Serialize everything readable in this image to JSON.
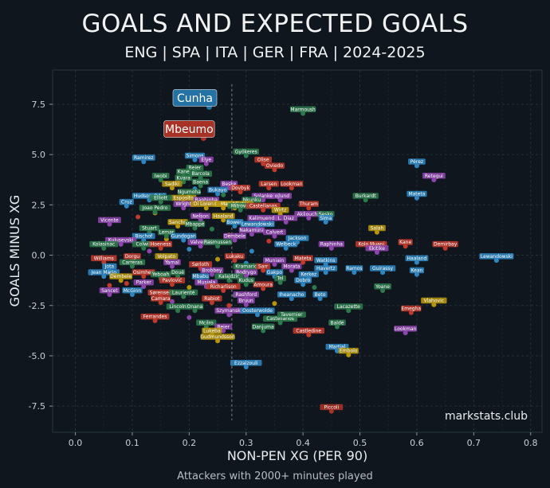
{
  "header": {
    "title": "GOALS AND EXPECTED GOALS",
    "subtitle": "ENG | SPA | ITA | GER | FRA | 2024-2025"
  },
  "caption": "Attackers with 2000+ minutes played",
  "watermark": "markstats.club",
  "chart_data": {
    "type": "scatter",
    "xlabel": "NON-PEN XG (PER 90)",
    "ylabel": "GOALS MINUS XG",
    "xlim": [
      -0.04,
      0.82
    ],
    "ylim": [
      -8.8,
      9.2
    ],
    "xticks": [
      "0.0",
      "0.1",
      "0.2",
      "0.3",
      "0.4",
      "0.5",
      "0.6",
      "0.7",
      "0.8"
    ],
    "yticks": [
      "-7.5",
      "-5.0",
      "-2.5",
      "0.0",
      "2.5",
      "5.0",
      "7.5"
    ],
    "grid": true,
    "median_x": 0.275,
    "league_colors": {
      "ENG": "#c0392b",
      "SPA": "#2e86c1",
      "ITA": "#2c7a4b",
      "GER": "#8e44ad",
      "FRA": "#b7950b"
    },
    "highlighted": [
      {
        "name": "Cunha",
        "x": 0.21,
        "y": 7.8,
        "color": "#2471a3"
      },
      {
        "name": "Mbeumo",
        "x": 0.2,
        "y": 6.25,
        "color": "#a93226"
      }
    ],
    "labeled_players": [
      {
        "name": "Marmoush",
        "x": 0.4,
        "y": 7.2,
        "color": "#2c7a4b"
      },
      {
        "name": "Gyökeres",
        "x": 0.3,
        "y": 5.1,
        "color": "#2c7a4b"
      },
      {
        "name": "Simons",
        "x": 0.21,
        "y": 4.9,
        "color": "#2e86c1"
      },
      {
        "name": "Elye",
        "x": 0.23,
        "y": 4.7,
        "color": "#8e44ad"
      },
      {
        "name": "Ramirez",
        "x": 0.12,
        "y": 4.8,
        "color": "#2e86c1"
      },
      {
        "name": "Olise",
        "x": 0.33,
        "y": 4.7,
        "color": "#c0392b"
      },
      {
        "name": "Oviedo",
        "x": 0.35,
        "y": 4.4,
        "color": "#c0392b"
      },
      {
        "name": "Pérez",
        "x": 0.6,
        "y": 4.6,
        "color": "#2e86c1"
      },
      {
        "name": "Beier",
        "x": 0.21,
        "y": 4.3,
        "color": "#2c7a4b"
      },
      {
        "name": "Kane",
        "x": 0.19,
        "y": 4.1,
        "color": "#2c7a4b"
      },
      {
        "name": "Barcola",
        "x": 0.22,
        "y": 4.0,
        "color": "#2c7a4b"
      },
      {
        "name": "Retegui",
        "x": 0.63,
        "y": 3.9,
        "color": "#8e44ad"
      },
      {
        "name": "Iwobi",
        "x": 0.15,
        "y": 3.9,
        "color": "#2c7a4b"
      },
      {
        "name": "Kvara",
        "x": 0.19,
        "y": 3.8,
        "color": "#2c7a4b"
      },
      {
        "name": "Larsen",
        "x": 0.34,
        "y": 3.5,
        "color": "#c0392b"
      },
      {
        "name": "Lookman",
        "x": 0.38,
        "y": 3.5,
        "color": "#c0392b"
      },
      {
        "name": "Baena",
        "x": 0.22,
        "y": 3.6,
        "color": "#2c7a4b"
      },
      {
        "name": "Beske",
        "x": 0.27,
        "y": 3.5,
        "color": "#8e44ad"
      },
      {
        "name": "Dovbyk",
        "x": 0.29,
        "y": 3.3,
        "color": "#c0392b"
      },
      {
        "name": "Sadiki",
        "x": 0.17,
        "y": 3.5,
        "color": "#b7950b"
      },
      {
        "name": "Bukayo",
        "x": 0.25,
        "y": 3.2,
        "color": "#2e86c1"
      },
      {
        "name": "Ngumoha",
        "x": 0.2,
        "y": 3.1,
        "color": "#2c7a4b"
      },
      {
        "name": "Mateta",
        "x": 0.6,
        "y": 3.0,
        "color": "#2e86c1"
      },
      {
        "name": "Burkardt",
        "x": 0.51,
        "y": 2.9,
        "color": "#2c7a4b"
      },
      {
        "name": "Hudson-Odoi",
        "x": 0.13,
        "y": 2.9,
        "color": "#2e86c1"
      },
      {
        "name": "Esposito",
        "x": 0.19,
        "y": 2.8,
        "color": "#b7950b"
      },
      {
        "name": "Raphinha",
        "x": 0.23,
        "y": 2.7,
        "color": "#8e44ad"
      },
      {
        "name": "Elliott",
        "x": 0.15,
        "y": 2.8,
        "color": "#2c7a4b"
      },
      {
        "name": "Hojlund",
        "x": 0.36,
        "y": 2.9,
        "color": "#8e44ad"
      },
      {
        "name": "Solanke",
        "x": 0.33,
        "y": 2.9,
        "color": "#8e44ad"
      },
      {
        "name": "Nkunku",
        "x": 0.31,
        "y": 2.7,
        "color": "#2c7a4b"
      },
      {
        "name": "Cruz",
        "x": 0.09,
        "y": 2.6,
        "color": "#2e86c1"
      },
      {
        "name": "Wright",
        "x": 0.19,
        "y": 2.5,
        "color": "#8e44ad"
      },
      {
        "name": "Di Lorenzo",
        "x": 0.23,
        "y": 2.5,
        "color": "#b7950b"
      },
      {
        "name": "Gordon",
        "x": 0.26,
        "y": 2.5,
        "color": "#b7950b"
      },
      {
        "name": "Mac Allister",
        "x": 0.28,
        "y": 2.5,
        "color": "#b7950b"
      },
      {
        "name": "Mitrovic",
        "x": 0.29,
        "y": 2.4,
        "color": "#2c7a4b"
      },
      {
        "name": "Castellanos",
        "x": 0.33,
        "y": 2.4,
        "color": "#c0392b"
      },
      {
        "name": "Thuram",
        "x": 0.41,
        "y": 2.5,
        "color": "#c0392b"
      },
      {
        "name": "Wirtz",
        "x": 0.36,
        "y": 2.2,
        "color": "#b7950b"
      },
      {
        "name": "Joao Pedro",
        "x": 0.14,
        "y": 2.3,
        "color": "#2c7a4b"
      },
      {
        "name": "Vicente",
        "x": 0.06,
        "y": 1.7,
        "color": "#8e44ad"
      },
      {
        "name": "Akliouche",
        "x": 0.41,
        "y": 2.0,
        "color": "#8e44ad"
      },
      {
        "name": "Sesko",
        "x": 0.44,
        "y": 2.0,
        "color": "#2c7a4b"
      },
      {
        "name": "Nelson",
        "x": 0.22,
        "y": 1.9,
        "color": "#8e44ad"
      },
      {
        "name": "Haaland",
        "x": 0.26,
        "y": 1.9,
        "color": "#b7950b"
      },
      {
        "name": "Kalimuendo",
        "x": 0.33,
        "y": 1.8,
        "color": "#8e44ad"
      },
      {
        "name": "L. Diaz",
        "x": 0.37,
        "y": 1.8,
        "color": "#8e44ad"
      },
      {
        "name": "Sima",
        "x": 0.44,
        "y": 1.8,
        "color": "#2e86c1"
      },
      {
        "name": "Sancho",
        "x": 0.18,
        "y": 1.6,
        "color": "#b7950b"
      },
      {
        "name": "Mbappé",
        "x": 0.21,
        "y": 1.5,
        "color": "#2c7a4b"
      },
      {
        "name": "Bowen",
        "x": 0.28,
        "y": 1.6,
        "color": "#2e86c1"
      },
      {
        "name": "Lewandowski",
        "x": 0.32,
        "y": 1.5,
        "color": "#2e86c1"
      },
      {
        "name": "Salah",
        "x": 0.53,
        "y": 1.3,
        "color": "#b7950b"
      },
      {
        "name": "Stuart",
        "x": 0.13,
        "y": 1.3,
        "color": "#2c7a4b"
      },
      {
        "name": "Lemar",
        "x": 0.16,
        "y": 1.1,
        "color": "#2c7a4b"
      },
      {
        "name": "Nakamura",
        "x": 0.31,
        "y": 1.2,
        "color": "#8e44ad"
      },
      {
        "name": "Calvert",
        "x": 0.35,
        "y": 1.1,
        "color": "#8e44ad"
      },
      {
        "name": "Bischof",
        "x": 0.12,
        "y": 0.9,
        "color": "#2e86c1"
      },
      {
        "name": "Gundogan",
        "x": 0.19,
        "y": 0.9,
        "color": "#2e86c1"
      },
      {
        "name": "Dembele",
        "x": 0.28,
        "y": 0.9,
        "color": "#8e44ad"
      },
      {
        "name": "Jackson",
        "x": 0.39,
        "y": 0.8,
        "color": "#2e86c1"
      },
      {
        "name": "Kulusevski",
        "x": 0.08,
        "y": 0.7,
        "color": "#8e44ad"
      },
      {
        "name": "Colwill",
        "x": 0.12,
        "y": 0.5,
        "color": "#2c7a4b"
      },
      {
        "name": "Hoeness",
        "x": 0.15,
        "y": 0.5,
        "color": "#c0392b"
      },
      {
        "name": "Valverde",
        "x": 0.22,
        "y": 0.6,
        "color": "#8e44ad"
      },
      {
        "name": "Rasmussen",
        "x": 0.25,
        "y": 0.6,
        "color": "#2c7a4b"
      },
      {
        "name": "Welbeck",
        "x": 0.37,
        "y": 0.5,
        "color": "#2e86c1"
      },
      {
        "name": "Raphinha",
        "x": 0.45,
        "y": 0.5,
        "color": "#8e44ad"
      },
      {
        "name": "Kolo Muani",
        "x": 0.52,
        "y": 0.5,
        "color": "#c0392b"
      },
      {
        "name": "Kane",
        "x": 0.58,
        "y": 0.6,
        "color": "#c0392b"
      },
      {
        "name": "Demirbay",
        "x": 0.65,
        "y": 0.5,
        "color": "#c0392b"
      },
      {
        "name": "Ekitike",
        "x": 0.53,
        "y": 0.3,
        "color": "#8e44ad"
      },
      {
        "name": "Kolasinac",
        "x": 0.05,
        "y": 0.5,
        "color": "#2c7a4b"
      },
      {
        "name": "Lewandowski",
        "x": 0.74,
        "y": -0.1,
        "color": "#2e86c1"
      },
      {
        "name": "Williams",
        "x": 0.05,
        "y": -0.2,
        "color": "#c0392b"
      },
      {
        "name": "Dorgu",
        "x": 0.1,
        "y": -0.1,
        "color": "#c0392b"
      },
      {
        "name": "Volpato",
        "x": 0.16,
        "y": -0.1,
        "color": "#b7950b"
      },
      {
        "name": "Lukaku",
        "x": 0.28,
        "y": -0.1,
        "color": "#c0392b"
      },
      {
        "name": "Muniain",
        "x": 0.35,
        "y": -0.3,
        "color": "#8e44ad"
      },
      {
        "name": "Mateta",
        "x": 0.4,
        "y": -0.2,
        "color": "#c0392b"
      },
      {
        "name": "Watkins",
        "x": 0.44,
        "y": -0.3,
        "color": "#2e86c1"
      },
      {
        "name": "Haaland",
        "x": 0.6,
        "y": -0.2,
        "color": "#2e86c1"
      },
      {
        "name": "Jota",
        "x": 0.06,
        "y": -0.6,
        "color": "#2e86c1"
      },
      {
        "name": "Carreras",
        "x": 0.1,
        "y": -0.4,
        "color": "#2c7a4b"
      },
      {
        "name": "Yamal",
        "x": 0.17,
        "y": -0.4,
        "color": "#8e44ad"
      },
      {
        "name": "Sørloth",
        "x": 0.22,
        "y": -0.5,
        "color": "#c0392b"
      },
      {
        "name": "Kramaric",
        "x": 0.3,
        "y": -0.6,
        "color": "#2c7a4b"
      },
      {
        "name": "Sarr",
        "x": 0.33,
        "y": -0.6,
        "color": "#c0392b"
      },
      {
        "name": "Morata",
        "x": 0.38,
        "y": -0.6,
        "color": "#8e44ad"
      },
      {
        "name": "Havertz",
        "x": 0.44,
        "y": -0.7,
        "color": "#2e86c1"
      },
      {
        "name": "Ramos",
        "x": 0.49,
        "y": -0.7,
        "color": "#2e86c1"
      },
      {
        "name": "Guirassy",
        "x": 0.54,
        "y": -0.7,
        "color": "#2e86c1"
      },
      {
        "name": "Kean",
        "x": 0.6,
        "y": -0.8,
        "color": "#2e86c1"
      },
      {
        "name": "Jean Mario",
        "x": 0.05,
        "y": -0.9,
        "color": "#2e86c1"
      },
      {
        "name": "Osimhen",
        "x": 0.12,
        "y": -0.9,
        "color": "#c0392b"
      },
      {
        "name": "Doué",
        "x": 0.18,
        "y": -0.9,
        "color": "#2c7a4b"
      },
      {
        "name": "Brobbey",
        "x": 0.24,
        "y": -0.8,
        "color": "#8e44ad"
      },
      {
        "name": "Rodrygo",
        "x": 0.3,
        "y": -0.9,
        "color": "#8e44ad"
      },
      {
        "name": "Gakpo",
        "x": 0.35,
        "y": -0.9,
        "color": "#2e86c1"
      },
      {
        "name": "Kerkez",
        "x": 0.41,
        "y": -1.0,
        "color": "#2e86c1"
      },
      {
        "name": "Dembele",
        "x": 0.08,
        "y": -1.1,
        "color": "#b7950b"
      },
      {
        "name": "Yeboah",
        "x": 0.15,
        "y": -1.0,
        "color": "#2c7a4b"
      },
      {
        "name": "Mbabu",
        "x": 0.22,
        "y": -1.1,
        "color": "#2e86c1"
      },
      {
        "name": "Kalajdzic",
        "x": 0.27,
        "y": -1.1,
        "color": "#2c7a4b"
      },
      {
        "name": "Tel",
        "x": 0.36,
        "y": -1.2,
        "color": "#2c7a4b"
      },
      {
        "name": "Dobro",
        "x": 0.4,
        "y": -1.3,
        "color": "#2e86c1"
      },
      {
        "name": "Amoura",
        "x": 0.33,
        "y": -1.5,
        "color": "#c0392b"
      },
      {
        "name": "Kudus",
        "x": 0.3,
        "y": -1.3,
        "color": "#2c7a4b"
      },
      {
        "name": "Pavlović",
        "x": 0.17,
        "y": -1.3,
        "color": "#c0392b"
      },
      {
        "name": "Musiala",
        "x": 0.23,
        "y": -1.4,
        "color": "#8e44ad"
      },
      {
        "name": "Yoane",
        "x": 0.54,
        "y": -1.6,
        "color": "#2c7a4b"
      },
      {
        "name": "Parker",
        "x": 0.12,
        "y": -1.4,
        "color": "#8e44ad"
      },
      {
        "name": "Richarlison",
        "x": 0.26,
        "y": -1.6,
        "color": "#c0392b"
      },
      {
        "name": "McGinn",
        "x": 0.1,
        "y": -1.8,
        "color": "#2e86c1"
      },
      {
        "name": "Sancet",
        "x": 0.06,
        "y": -1.8,
        "color": "#8e44ad"
      },
      {
        "name": "Sørensen",
        "x": 0.15,
        "y": -1.9,
        "color": "#c0392b"
      },
      {
        "name": "Laurienté",
        "x": 0.19,
        "y": -1.9,
        "color": "#2c7a4b"
      },
      {
        "name": "Rashford",
        "x": 0.3,
        "y": -2.0,
        "color": "#8e44ad"
      },
      {
        "name": "Iheanacho",
        "x": 0.38,
        "y": -2.0,
        "color": "#2e86c1"
      },
      {
        "name": "Beto",
        "x": 0.43,
        "y": -2.0,
        "color": "#2e86c1"
      },
      {
        "name": "Camara",
        "x": 0.15,
        "y": -2.2,
        "color": "#c0392b"
      },
      {
        "name": "Rabiot",
        "x": 0.24,
        "y": -2.2,
        "color": "#c0392b"
      },
      {
        "name": "Bruun",
        "x": 0.3,
        "y": -2.3,
        "color": "#8e44ad"
      },
      {
        "name": "Lacazette",
        "x": 0.48,
        "y": -2.6,
        "color": "#2c7a4b"
      },
      {
        "name": "Vlahovic",
        "x": 0.63,
        "y": -2.3,
        "color": "#b7950b"
      },
      {
        "name": "Emegha",
        "x": 0.59,
        "y": -2.7,
        "color": "#c0392b"
      },
      {
        "name": "Lincoln",
        "x": 0.18,
        "y": -2.6,
        "color": "#2c7a4b"
      },
      {
        "name": "Onana",
        "x": 0.21,
        "y": -2.6,
        "color": "#2c7a4b"
      },
      {
        "name": "Szymanski",
        "x": 0.27,
        "y": -2.8,
        "color": "#8e44ad"
      },
      {
        "name": "Oosterwolde",
        "x": 0.32,
        "y": -2.8,
        "color": "#2e86c1"
      },
      {
        "name": "Ferrandes",
        "x": 0.14,
        "y": -3.1,
        "color": "#c0392b"
      },
      {
        "name": "Castellanos",
        "x": 0.36,
        "y": -3.2,
        "color": "#2c7a4b"
      },
      {
        "name": "Tavernier",
        "x": 0.38,
        "y": -3.0,
        "color": "#2c7a4b"
      },
      {
        "name": "Mcilro",
        "x": 0.23,
        "y": -3.4,
        "color": "#2c7a4b"
      },
      {
        "name": "Danjuma",
        "x": 0.33,
        "y": -3.6,
        "color": "#2c7a4b"
      },
      {
        "name": "Baldé",
        "x": 0.46,
        "y": -3.4,
        "color": "#2c7a4b"
      },
      {
        "name": "Lookman",
        "x": 0.58,
        "y": -3.7,
        "color": "#8e44ad"
      },
      {
        "name": "Beier",
        "x": 0.26,
        "y": -3.6,
        "color": "#8e44ad"
      },
      {
        "name": "Lukeba",
        "x": 0.24,
        "y": -3.8,
        "color": "#b7950b"
      },
      {
        "name": "Castledine",
        "x": 0.41,
        "y": -3.8,
        "color": "#c0392b"
      },
      {
        "name": "Gudmundsson",
        "x": 0.25,
        "y": -4.1,
        "color": "#b7950b"
      },
      {
        "name": "Martial",
        "x": 0.46,
        "y": -4.6,
        "color": "#2e86c1"
      },
      {
        "name": "Embolo",
        "x": 0.48,
        "y": -4.8,
        "color": "#b7950b"
      },
      {
        "name": "Ezzalzouli",
        "x": 0.3,
        "y": -5.4,
        "color": "#2e86c1"
      },
      {
        "name": "Piccoli",
        "x": 0.45,
        "y": -7.6,
        "color": "#a93226"
      }
    ],
    "unlabeled_points": [
      {
        "x": 0.18,
        "y": 3.7,
        "color": "#c0392b"
      },
      {
        "x": 0.21,
        "y": 3.3,
        "color": "#2e86c1"
      },
      {
        "x": 0.14,
        "y": 2.1,
        "color": "#b7950b"
      },
      {
        "x": 0.11,
        "y": 1.9,
        "color": "#c0392b"
      },
      {
        "x": 0.24,
        "y": 1.3,
        "color": "#2c7a4b"
      },
      {
        "x": 0.27,
        "y": 1.0,
        "color": "#b7950b"
      },
      {
        "x": 0.2,
        "y": 0.3,
        "color": "#2e86c1"
      },
      {
        "x": 0.13,
        "y": 0.2,
        "color": "#8e44ad"
      },
      {
        "x": 0.31,
        "y": 0.2,
        "color": "#2e86c1"
      },
      {
        "x": 0.25,
        "y": -0.2,
        "color": "#b7950b"
      },
      {
        "x": 0.09,
        "y": -1.4,
        "color": "#c0392b"
      },
      {
        "x": 0.2,
        "y": -1.6,
        "color": "#b7950b"
      },
      {
        "x": 0.28,
        "y": -2.0,
        "color": "#2c7a4b"
      },
      {
        "x": 0.35,
        "y": -2.4,
        "color": "#b7950b"
      },
      {
        "x": 0.2,
        "y": -3.1,
        "color": "#8e44ad"
      },
      {
        "x": 0.06,
        "y": -1.5,
        "color": "#c0392b"
      },
      {
        "x": 0.17,
        "y": -2.3,
        "color": "#8e44ad"
      },
      {
        "x": 0.42,
        "y": -1.6,
        "color": "#2c7a4b"
      },
      {
        "x": 0.34,
        "y": 0.7,
        "color": "#c0392b"
      },
      {
        "x": 0.22,
        "y": 2.0,
        "color": "#8e44ad"
      },
      {
        "x": 0.26,
        "y": 3.0,
        "color": "#2c7a4b"
      },
      {
        "x": 0.3,
        "y": -0.4,
        "color": "#2e86c1"
      },
      {
        "x": 0.16,
        "y": 0.8,
        "color": "#b7950b"
      },
      {
        "x": 0.27,
        "y": -2.5,
        "color": "#c0392b"
      }
    ]
  }
}
